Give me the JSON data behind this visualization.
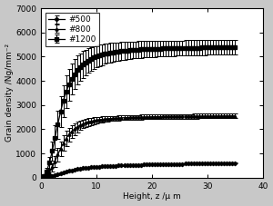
{
  "title": "",
  "xlabel": "Height, z /μ m",
  "ylabel": "Grain density /Ng/mm⁻²",
  "xlim": [
    0,
    40
  ],
  "ylim": [
    0,
    7000
  ],
  "xticks": [
    0,
    10,
    20,
    30,
    40
  ],
  "yticks": [
    0,
    1000,
    2000,
    3000,
    4000,
    5000,
    6000,
    7000
  ],
  "series": [
    {
      "label": "#500",
      "marker": "D",
      "color": "#000000",
      "x": [
        0.5,
        1,
        1.5,
        2,
        2.5,
        3,
        3.5,
        4,
        4.5,
        5,
        5.5,
        6,
        6.5,
        7,
        7.5,
        8,
        8.5,
        9,
        9.5,
        10,
        10.5,
        11,
        11.5,
        12,
        12.5,
        13,
        13.5,
        14,
        14.5,
        15,
        15.5,
        16,
        16.5,
        17,
        17.5,
        18,
        18.5,
        19,
        19.5,
        20,
        20.5,
        21,
        21.5,
        22,
        22.5,
        23,
        23.5,
        24,
        24.5,
        25,
        25.5,
        26,
        26.5,
        27,
        27.5,
        28,
        28.5,
        29,
        29.5,
        30,
        30.5,
        31,
        31.5,
        32,
        32.5,
        33,
        33.5,
        34,
        34.5,
        35
      ],
      "y": [
        10,
        25,
        50,
        80,
        115,
        150,
        185,
        220,
        255,
        285,
        310,
        335,
        355,
        375,
        390,
        405,
        418,
        430,
        440,
        450,
        460,
        468,
        475,
        482,
        488,
        493,
        498,
        503,
        507,
        512,
        516,
        520,
        524,
        528,
        532,
        536,
        539,
        542,
        545,
        548,
        551,
        554,
        557,
        559,
        561,
        563,
        565,
        567,
        569,
        571,
        573,
        575,
        577,
        579,
        580,
        582,
        584,
        586,
        587,
        589,
        591,
        592,
        594,
        595,
        597,
        598,
        600,
        601,
        603,
        604
      ],
      "yerr": [
        5,
        10,
        18,
        25,
        30,
        35,
        38,
        40,
        40,
        38,
        36,
        34,
        32,
        30,
        28,
        26,
        24,
        22,
        21,
        20,
        20,
        20,
        20,
        20,
        20,
        20,
        20,
        20,
        20,
        20,
        20,
        20,
        20,
        20,
        20,
        20,
        20,
        20,
        20,
        20,
        20,
        20,
        20,
        20,
        20,
        20,
        20,
        20,
        20,
        20,
        20,
        20,
        20,
        20,
        20,
        20,
        20,
        20,
        20,
        20,
        20,
        20,
        20,
        20,
        20,
        20,
        20,
        20,
        20,
        20
      ]
    },
    {
      "label": "#800",
      "marker": "^",
      "color": "#000000",
      "x": [
        0.5,
        1,
        1.5,
        2,
        2.5,
        3,
        3.5,
        4,
        4.5,
        5,
        5.5,
        6,
        6.5,
        7,
        7.5,
        8,
        8.5,
        9,
        9.5,
        10,
        10.5,
        11,
        11.5,
        12,
        12.5,
        13,
        13.5,
        14,
        14.5,
        15,
        15.5,
        16,
        16.5,
        17,
        17.5,
        18,
        18.5,
        19,
        19.5,
        20,
        20.5,
        21,
        21.5,
        22,
        22.5,
        23,
        23.5,
        24,
        24.5,
        25,
        25.5,
        26,
        26.5,
        27,
        27.5,
        28,
        28.5,
        29,
        29.5,
        30,
        30.5,
        31,
        31.5,
        32,
        32.5,
        33,
        33.5,
        34,
        34.5,
        35
      ],
      "y": [
        30,
        100,
        230,
        430,
        680,
        950,
        1200,
        1430,
        1620,
        1780,
        1910,
        2010,
        2095,
        2165,
        2220,
        2265,
        2300,
        2330,
        2355,
        2375,
        2393,
        2408,
        2421,
        2432,
        2442,
        2451,
        2459,
        2466,
        2472,
        2478,
        2483,
        2488,
        2492,
        2496,
        2500,
        2503,
        2506,
        2509,
        2512,
        2515,
        2517,
        2519,
        2521,
        2523,
        2525,
        2527,
        2529,
        2531,
        2533,
        2535,
        2537,
        2538,
        2539,
        2540,
        2541,
        2542,
        2543,
        2544,
        2545,
        2546,
        2547,
        2548,
        2549,
        2550,
        2551,
        2552,
        2553,
        2554,
        2555,
        2556
      ],
      "yerr": [
        15,
        45,
        100,
        170,
        230,
        280,
        310,
        320,
        310,
        290,
        265,
        240,
        218,
        200,
        182,
        168,
        155,
        145,
        136,
        128,
        122,
        117,
        113,
        109,
        106,
        103,
        101,
        99,
        98,
        97,
        96,
        95,
        95,
        95,
        95,
        95,
        95,
        95,
        95,
        95,
        95,
        95,
        95,
        95,
        95,
        95,
        95,
        95,
        95,
        95,
        95,
        95,
        95,
        95,
        95,
        95,
        95,
        95,
        95,
        95,
        95,
        95,
        95,
        95,
        95,
        95,
        95,
        95,
        95,
        95
      ]
    },
    {
      "label": "#1200",
      "marker": "s",
      "color": "#000000",
      "x": [
        0.5,
        1,
        1.5,
        2,
        2.5,
        3,
        3.5,
        4,
        4.5,
        5,
        5.5,
        6,
        6.5,
        7,
        7.5,
        8,
        8.5,
        9,
        9.5,
        10,
        10.5,
        11,
        11.5,
        12,
        12.5,
        13,
        13.5,
        14,
        14.5,
        15,
        15.5,
        16,
        16.5,
        17,
        17.5,
        18,
        18.5,
        19,
        19.5,
        20,
        20.5,
        21,
        21.5,
        22,
        22.5,
        23,
        23.5,
        24,
        24.5,
        25,
        25.5,
        26,
        26.5,
        27,
        27.5,
        28,
        28.5,
        29,
        29.5,
        30,
        30.5,
        31,
        31.5,
        32,
        32.5,
        33,
        33.5,
        34,
        34.5,
        35
      ],
      "y": [
        80,
        270,
        620,
        1100,
        1650,
        2200,
        2720,
        3170,
        3540,
        3840,
        4080,
        4280,
        4440,
        4570,
        4680,
        4770,
        4845,
        4910,
        4965,
        5010,
        5050,
        5085,
        5115,
        5141,
        5164,
        5184,
        5202,
        5218,
        5232,
        5245,
        5256,
        5266,
        5275,
        5283,
        5291,
        5298,
        5304,
        5310,
        5315,
        5320,
        5325,
        5329,
        5333,
        5337,
        5341,
        5344,
        5347,
        5350,
        5353,
        5356,
        5358,
        5360,
        5362,
        5364,
        5366,
        5368,
        5370,
        5372,
        5374,
        5376,
        5378,
        5380,
        5382,
        5384,
        5386,
        5388,
        5390,
        5392,
        5394,
        5396
      ],
      "yerr": [
        40,
        120,
        250,
        380,
        500,
        580,
        630,
        660,
        670,
        665,
        650,
        625,
        600,
        575,
        550,
        525,
        505,
        485,
        468,
        452,
        438,
        426,
        415,
        405,
        397,
        389,
        382,
        376,
        370,
        365,
        360,
        356,
        352,
        348,
        344,
        341,
        338,
        336,
        334,
        332,
        330,
        328,
        326,
        324,
        322,
        320,
        318,
        316,
        315,
        314,
        313,
        312,
        311,
        310,
        309,
        308,
        307,
        306,
        305,
        304,
        303,
        302,
        301,
        300,
        300,
        300,
        300,
        300,
        300,
        300
      ]
    }
  ],
  "bg_color": "#c8c8c8",
  "plot_bg_color": "#ffffff",
  "figsize": [
    3.0,
    2.27
  ],
  "dpi": 100
}
